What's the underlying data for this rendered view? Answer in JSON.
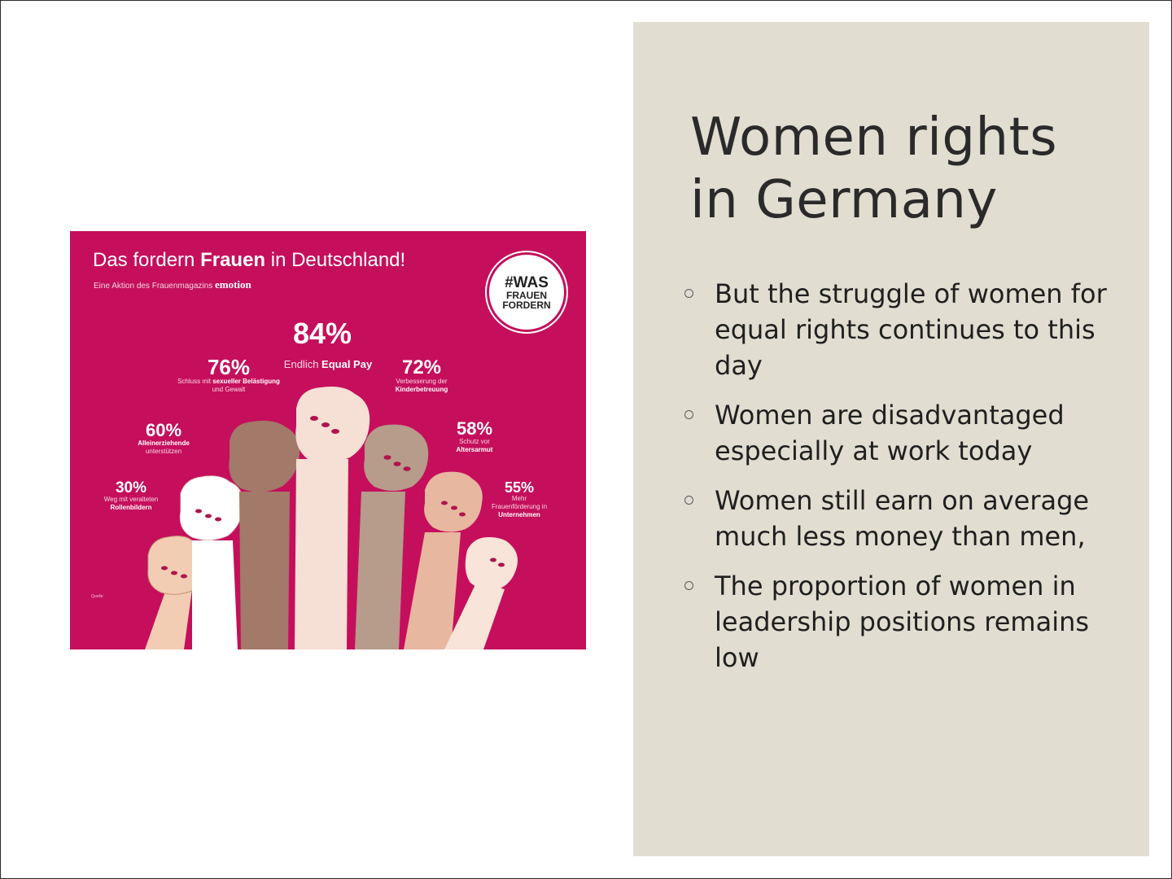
{
  "slide": {
    "title_lines": [
      "Women rights",
      "in Germany"
    ],
    "bullets": [
      "But the struggle of women for equal rights continues to this day",
      "Women are disadvantaged especially at work today",
      "Women still earn on average much less money than men,",
      "The proportion of women in leadership positions remains low"
    ]
  },
  "infographic": {
    "title_pre": "Das fordern ",
    "title_bold": "Frauen",
    "title_post": " in Deutschland!",
    "subtitle": "Eine Aktion des Frauenmagazins ",
    "subtitle_brand": "emotion",
    "badge": [
      "#WAS",
      "FRAUEN",
      "FORDERN"
    ],
    "stats": {
      "s84": {
        "pct": "84%",
        "desc_pre": "Endlich ",
        "desc_bold": "Equal Pay"
      },
      "s76": {
        "pct": "76%",
        "desc_pre": "Schluss mit ",
        "desc_bold": "sexueller Belästigung",
        "desc_post": " und Gewalt"
      },
      "s72": {
        "pct": "72%",
        "desc_pre": "Verbesserung der ",
        "desc_bold": "Kinderbetreuung"
      },
      "s60": {
        "pct": "60%",
        "desc_bold": "Alleinerziehende",
        "desc_post": "unterstützen"
      },
      "s58": {
        "pct": "58%",
        "desc_pre": "Schutz vor",
        "desc_bold": "Altersarmut"
      },
      "s30": {
        "pct": "30%",
        "desc_pre": "Weg mit veralteten",
        "desc_bold": "Rollenbildern"
      },
      "s55": {
        "pct": "55%",
        "desc_pre": "Mehr Frauenförderung in",
        "desc_bold": "Unternehmen"
      }
    },
    "source": [
      "Quelle:"
    ],
    "colors": {
      "background": "#c50f5c",
      "skin_tones": [
        "#f2cdb3",
        "#ffffff",
        "#a3796a",
        "#f6dfd4",
        "#b79b8b",
        "#e7b7a0",
        "#f8e4d8"
      ],
      "nails": "#b0134d"
    }
  }
}
